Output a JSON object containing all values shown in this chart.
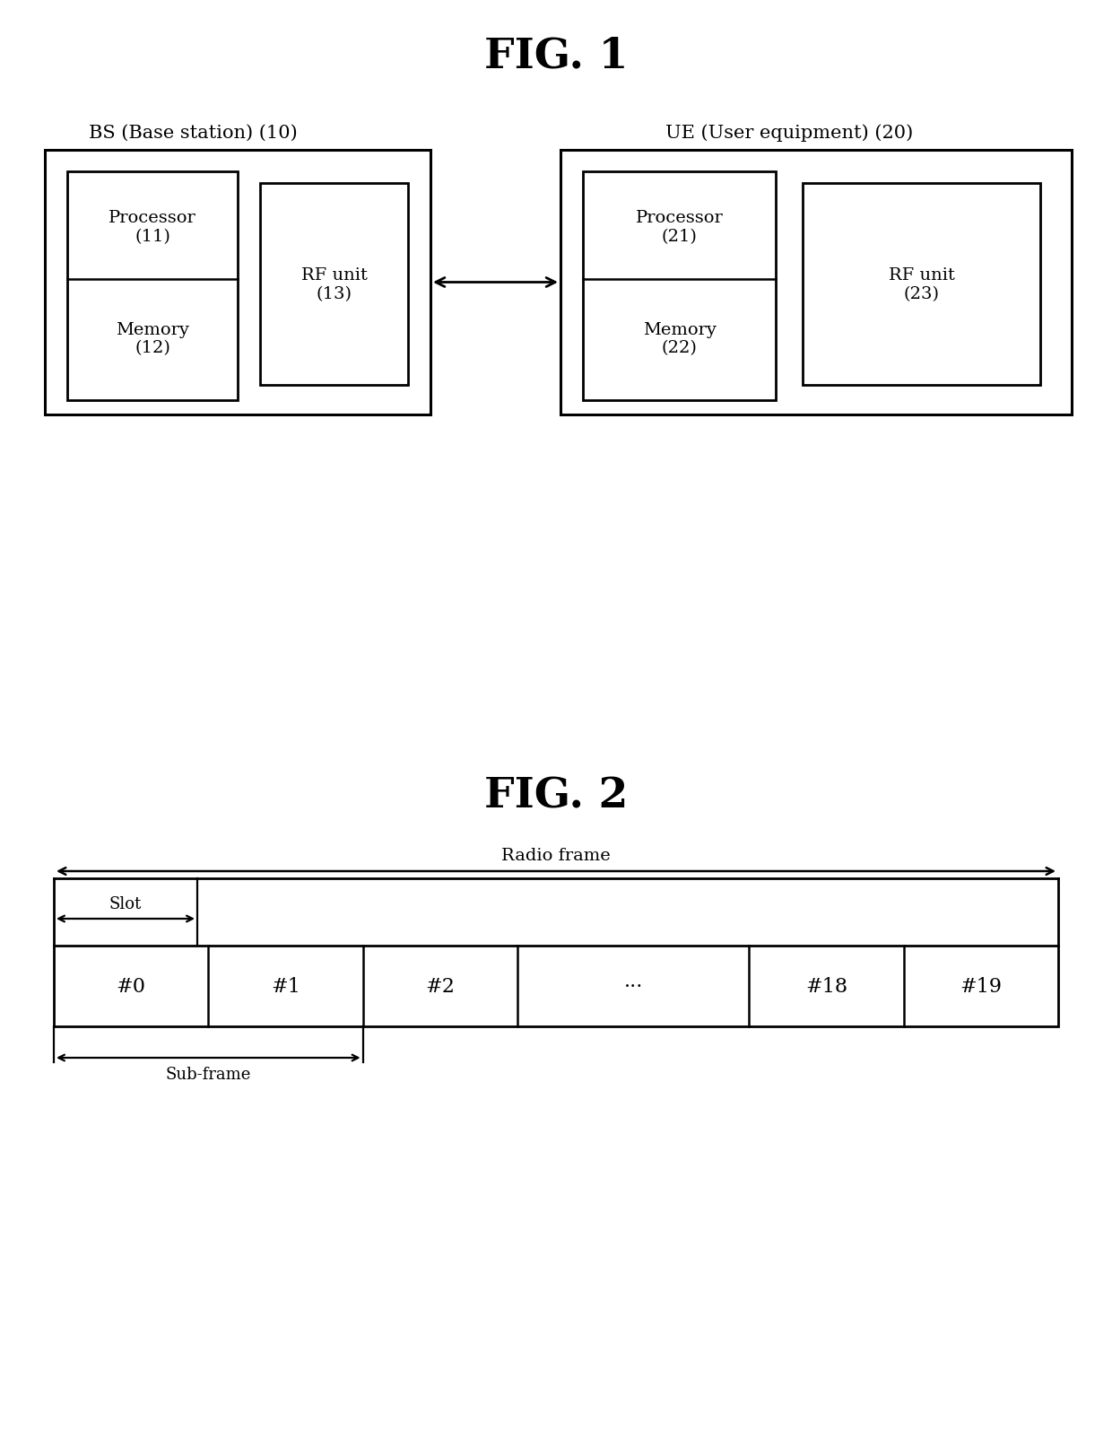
{
  "fig1_title": "FIG. 1",
  "fig2_title": "FIG. 2",
  "bg_color": "#ffffff",
  "line_color": "#000000",
  "text_color": "#000000",
  "bs_label": "BS (Base station) (10)",
  "ue_label": "UE (User equipment) (20)",
  "bs_proc_label": "Processor\n(11)",
  "bs_mem_label": "Memory\n(12)",
  "bs_rf_label": "RF unit\n(13)",
  "ue_proc_label": "Processor\n(21)",
  "ue_mem_label": "Memory\n(22)",
  "ue_rf_label": "RF unit\n(23)",
  "radio_frame_label": "Radio frame",
  "slot_label": "Slot",
  "subframe_label": "Sub-frame",
  "slots": [
    "#0",
    "#1",
    "#2",
    "···",
    "#18",
    "#19"
  ]
}
